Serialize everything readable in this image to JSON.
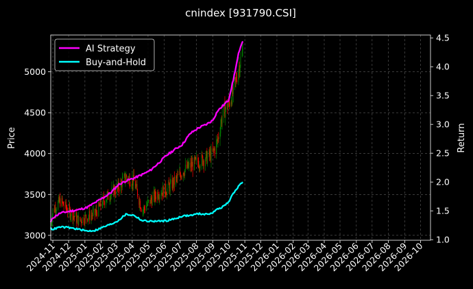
{
  "chart_data": {
    "type": "line",
    "title": "cnindex [931790.CSI]",
    "ylabel": "Price",
    "y2label": "Return",
    "ylim": [
      2940,
      5450
    ],
    "y2lim": [
      0.99,
      4.55
    ],
    "yticks": [
      3000,
      3500,
      4000,
      4500,
      5000
    ],
    "y2ticks": [
      1.0,
      1.5,
      2.0,
      2.5,
      3.0,
      3.5,
      4.0,
      4.5
    ],
    "xlim": [
      "2024-10-28",
      "2026-10-20"
    ],
    "x_ticks": [
      "2024-11",
      "2024-12",
      "2025-01",
      "2025-02",
      "2025-03",
      "2025-04",
      "2025-05",
      "2025-06",
      "2025-07",
      "2025-08",
      "2025-09",
      "2025-10",
      "2025-11",
      "2025-12",
      "2026-01",
      "2026-02",
      "2026-03",
      "2026-04",
      "2026-05",
      "2026-06",
      "2026-07",
      "2026-08",
      "2026-09",
      "2026-10"
    ],
    "grid": true,
    "legend_placement": "top-left",
    "background": "#000000",
    "series": [
      {
        "name": "AI Strategy",
        "axis": "right",
        "color": "#ff00ff",
        "x": [
          "2024-10-28",
          "2024-11-01",
          "2024-11-15",
          "2024-12-01",
          "2024-12-20",
          "2025-01-05",
          "2025-01-20",
          "2025-02-05",
          "2025-02-20",
          "2025-03-05",
          "2025-03-20",
          "2025-04-05",
          "2025-04-20",
          "2025-05-05",
          "2025-05-20",
          "2025-06-05",
          "2025-06-20",
          "2025-07-05",
          "2025-07-20",
          "2025-08-05",
          "2025-08-20",
          "2025-09-01",
          "2025-09-10",
          "2025-09-20",
          "2025-10-01",
          "2025-10-10",
          "2025-10-20",
          "2025-10-28"
        ],
        "values": [
          1.3,
          1.38,
          1.46,
          1.49,
          1.52,
          1.56,
          1.64,
          1.73,
          1.82,
          1.95,
          2.02,
          2.07,
          2.13,
          2.2,
          2.32,
          2.46,
          2.56,
          2.65,
          2.84,
          2.94,
          3.0,
          3.07,
          3.23,
          3.32,
          3.42,
          3.77,
          4.22,
          4.44
        ]
      },
      {
        "name": "Buy-and-Hold",
        "axis": "right",
        "color": "#00ffff",
        "x": [
          "2024-10-28",
          "2024-11-01",
          "2024-11-15",
          "2024-12-01",
          "2024-12-20",
          "2025-01-05",
          "2025-01-20",
          "2025-02-05",
          "2025-02-20",
          "2025-03-05",
          "2025-03-20",
          "2025-04-05",
          "2025-04-20",
          "2025-05-05",
          "2025-05-20",
          "2025-06-05",
          "2025-06-20",
          "2025-07-05",
          "2025-07-20",
          "2025-08-05",
          "2025-08-20",
          "2025-09-01",
          "2025-09-10",
          "2025-09-20",
          "2025-10-01",
          "2025-10-10",
          "2025-10-20",
          "2025-10-28"
        ],
        "values": [
          1.2,
          1.18,
          1.22,
          1.21,
          1.18,
          1.15,
          1.16,
          1.22,
          1.27,
          1.33,
          1.44,
          1.42,
          1.33,
          1.32,
          1.32,
          1.33,
          1.36,
          1.41,
          1.42,
          1.45,
          1.44,
          1.47,
          1.53,
          1.57,
          1.65,
          1.8,
          1.93,
          2.0
        ]
      },
      {
        "name": "Price",
        "axis": "left",
        "type": "candlestick",
        "up_color": "#008000",
        "down_color": "#ff0000",
        "x": [
          "2024-10-28",
          "2024-11-01",
          "2024-11-15",
          "2024-12-01",
          "2024-12-20",
          "2025-01-05",
          "2025-01-20",
          "2025-02-05",
          "2025-02-20",
          "2025-03-05",
          "2025-03-20",
          "2025-04-05",
          "2025-04-20",
          "2025-05-05",
          "2025-05-20",
          "2025-06-05",
          "2025-06-20",
          "2025-07-05",
          "2025-07-20",
          "2025-08-05",
          "2025-08-20",
          "2025-09-01",
          "2025-09-10",
          "2025-09-20",
          "2025-10-01",
          "2025-10-10",
          "2025-10-20",
          "2025-10-28"
        ],
        "values": [
          3150,
          3300,
          3420,
          3300,
          3180,
          3230,
          3260,
          3420,
          3520,
          3580,
          3720,
          3650,
          3300,
          3420,
          3520,
          3560,
          3650,
          3780,
          3850,
          3900,
          3950,
          4000,
          4150,
          4500,
          4600,
          4750,
          5050,
          5250
        ]
      }
    ]
  }
}
